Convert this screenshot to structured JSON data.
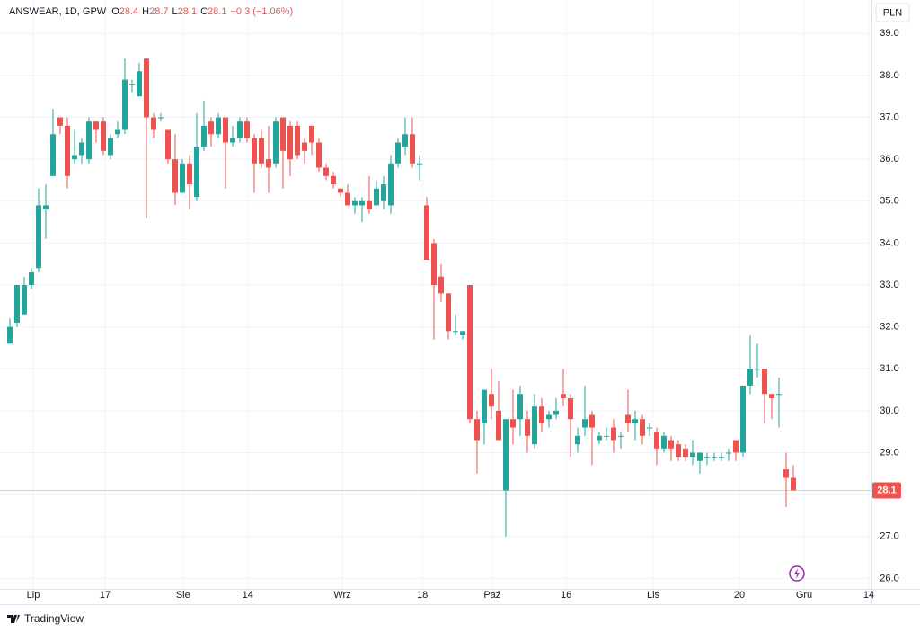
{
  "chart_data": {
    "type": "candlestick",
    "symbol": "ANSWEAR, 1D, GPW",
    "ohlc": [
      {
        "label": "O",
        "value": 28.4
      },
      {
        "label": "H",
        "value": 28.7
      },
      {
        "label": "L",
        "value": 28.1
      },
      {
        "label": "C",
        "value": 28.1
      }
    ],
    "change": "−0.3 (−1.06%)",
    "currency": "PLN",
    "last_price": 28.1,
    "logo": "TradingView",
    "up_color": "#26a69a",
    "down_color": "#ef5350",
    "grid": true,
    "xlim": [
      -1.375,
      119.875
    ],
    "xticks": [
      {
        "value": 3.25,
        "label": "Lip"
      },
      {
        "value": 13.25,
        "label": "17"
      },
      {
        "value": 24.1,
        "label": "Sie"
      },
      {
        "value": 33.1,
        "label": "14"
      },
      {
        "value": 46.25,
        "label": "Wrz"
      },
      {
        "value": 57.4,
        "label": "18"
      },
      {
        "value": 67.1,
        "label": "Paź"
      },
      {
        "value": 77.4,
        "label": "16"
      },
      {
        "value": 89.5,
        "label": "Lis"
      },
      {
        "value": 101.5,
        "label": "20"
      },
      {
        "value": 110.5,
        "label": "Gru"
      },
      {
        "value": 119.5,
        "label": "14"
      }
    ],
    "ylim": [
      25.75,
      39.8
    ],
    "yticks": [
      {
        "value": 26,
        "label": "26.0"
      },
      {
        "value": 27,
        "label": "27.0"
      },
      {
        "value": 28,
        "label": "28.0"
      },
      {
        "value": 29,
        "label": "29.0"
      },
      {
        "value": 30,
        "label": "30.0"
      },
      {
        "value": 31,
        "label": "31.0"
      },
      {
        "value": 32,
        "label": "32.0"
      },
      {
        "value": 33,
        "label": "33.0"
      },
      {
        "value": 34,
        "label": "34.0"
      },
      {
        "value": 35,
        "label": "35.0"
      },
      {
        "value": 36,
        "label": "36.0"
      },
      {
        "value": 37,
        "label": "37.0"
      },
      {
        "value": 38,
        "label": "38.0"
      },
      {
        "value": 39,
        "label": "39.0"
      }
    ],
    "open": [
      31.6,
      32.1,
      32.3,
      33.0,
      33.4,
      34.8,
      35.6,
      37.0,
      36.8,
      36.0,
      36.1,
      36.0,
      36.9,
      36.9,
      36.1,
      36.6,
      36.7,
      37.8,
      37.5,
      38.4,
      37.0,
      37.0,
      36.7,
      36.0,
      35.2,
      35.9,
      35.1,
      36.3,
      36.9,
      36.6,
      37.0,
      36.4,
      36.5,
      36.9,
      36.5,
      36.5,
      36.0,
      35.9,
      37.0,
      36.8,
      36.8,
      36.4,
      36.8,
      36.4,
      35.8,
      35.6,
      35.3,
      35.2,
      34.9,
      34.9,
      35.0,
      34.9,
      35.0,
      34.9,
      35.9,
      36.3,
      36.6,
      35.9,
      34.9,
      34.0,
      33.2,
      32.8,
      31.9,
      31.8,
      33.0,
      29.8,
      29.7,
      30.4,
      30.0,
      28.1,
      29.8,
      29.8,
      29.8,
      29.2,
      30.1,
      29.8,
      29.9,
      30.4,
      30.3,
      29.2,
      29.6,
      29.9,
      29.3,
      29.4,
      29.6,
      29.4,
      29.9,
      29.7,
      29.8,
      29.6,
      29.5,
      29.1,
      29.3,
      29.2,
      29.1,
      28.9,
      28.8,
      28.9,
      28.9,
      28.9,
      29.0,
      29.3,
      29.0,
      30.6,
      31.0,
      31.0,
      30.4,
      30.4,
      28.6,
      28.4
    ],
    "high": [
      32.2,
      33.0,
      33.2,
      33.4,
      35.3,
      35.4,
      37.2,
      37.0,
      37.0,
      36.7,
      36.5,
      37.0,
      36.9,
      37.0,
      36.6,
      36.9,
      38.4,
      37.9,
      38.3,
      38.4,
      37.1,
      37.1,
      36.7,
      36.6,
      36.0,
      36.1,
      37.1,
      37.4,
      37.0,
      37.1,
      37.0,
      36.8,
      37.0,
      37.0,
      36.6,
      36.7,
      36.8,
      37.0,
      37.0,
      36.9,
      36.9,
      36.5,
      36.8,
      36.5,
      35.9,
      35.7,
      35.3,
      35.4,
      35.1,
      35.1,
      35.6,
      35.5,
      35.6,
      36.1,
      36.5,
      37.0,
      37.0,
      36.1,
      35.1,
      34.1,
      33.5,
      32.8,
      32.3,
      31.9,
      33.0,
      30.0,
      30.5,
      31.0,
      30.7,
      29.8,
      30.5,
      30.6,
      30.0,
      30.4,
      30.3,
      30.0,
      30.3,
      31.0,
      30.4,
      29.6,
      30.6,
      30.0,
      29.5,
      29.6,
      29.8,
      29.5,
      30.5,
      30.0,
      29.9,
      29.7,
      29.6,
      29.5,
      29.4,
      29.3,
      29.2,
      29.3,
      29.0,
      29.0,
      29.0,
      29.0,
      29.1,
      29.3,
      30.6,
      31.8,
      31.6,
      31.0,
      30.4,
      30.8,
      29.0,
      28.7
    ],
    "low": [
      31.6,
      32.0,
      32.3,
      32.9,
      33.3,
      34.1,
      35.6,
      36.6,
      35.3,
      35.9,
      35.9,
      35.9,
      36.4,
      36.1,
      36.0,
      36.5,
      36.6,
      37.6,
      37.5,
      34.6,
      36.5,
      36.9,
      35.9,
      34.9,
      35.2,
      34.8,
      35.0,
      36.2,
      36.3,
      36.5,
      35.3,
      36.3,
      36.4,
      36.4,
      35.2,
      35.8,
      35.2,
      35.8,
      35.3,
      35.6,
      36.0,
      35.9,
      36.1,
      35.7,
      35.5,
      35.3,
      35.1,
      34.9,
      34.7,
      34.5,
      34.7,
      34.9,
      34.8,
      34.7,
      35.8,
      36.1,
      35.8,
      35.5,
      33.6,
      31.7,
      32.6,
      31.7,
      31.8,
      31.7,
      29.7,
      28.5,
      29.2,
      29.8,
      29.3,
      27.0,
      29.2,
      29.4,
      29.0,
      29.1,
      29.5,
      29.6,
      29.8,
      30.1,
      28.9,
      29.0,
      29.4,
      28.7,
      29.2,
      29.3,
      29.0,
      29.1,
      29.5,
      29.3,
      29.2,
      29.4,
      28.7,
      29.0,
      28.8,
      28.8,
      28.8,
      28.7,
      28.5,
      28.7,
      28.8,
      28.8,
      28.8,
      28.8,
      28.9,
      30.4,
      30.8,
      29.7,
      29.8,
      29.6,
      27.7,
      28.1
    ],
    "close": [
      32.0,
      33.0,
      33.0,
      33.3,
      34.9,
      34.9,
      36.6,
      36.8,
      35.6,
      36.1,
      36.4,
      36.9,
      36.7,
      36.2,
      36.5,
      36.7,
      37.9,
      37.8,
      38.1,
      37.0,
      36.7,
      37.0,
      36.0,
      35.2,
      35.9,
      35.4,
      36.3,
      36.8,
      36.6,
      37.0,
      36.4,
      36.5,
      36.9,
      36.5,
      35.9,
      35.9,
      35.8,
      36.9,
      36.2,
      36.0,
      36.1,
      36.2,
      36.4,
      35.8,
      35.6,
      35.4,
      35.2,
      34.9,
      35.0,
      35.0,
      34.8,
      35.3,
      35.4,
      35.9,
      36.4,
      36.6,
      35.9,
      35.9,
      33.6,
      33.0,
      32.8,
      31.9,
      31.9,
      31.9,
      29.8,
      29.3,
      30.5,
      30.1,
      29.3,
      29.8,
      29.6,
      30.4,
      29.4,
      30.1,
      29.7,
      29.9,
      30.0,
      30.3,
      29.8,
      29.4,
      29.8,
      29.6,
      29.4,
      29.4,
      29.3,
      29.4,
      29.7,
      29.8,
      29.4,
      29.6,
      29.1,
      29.4,
      29.1,
      28.9,
      28.9,
      29.0,
      29.0,
      28.9,
      28.9,
      28.9,
      29.0,
      29.0,
      30.6,
      31.0,
      31.0,
      30.4,
      30.3,
      30.4,
      28.4,
      28.1
    ]
  }
}
